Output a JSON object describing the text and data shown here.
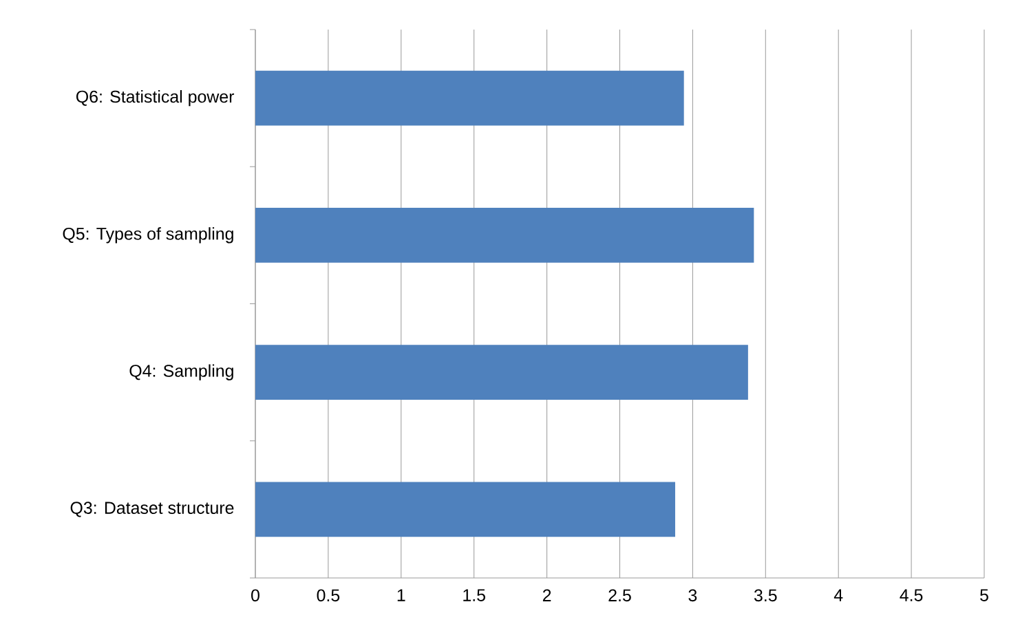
{
  "chart_data": {
    "type": "bar",
    "orientation": "horizontal",
    "categories": [
      "Q6: Statistical power",
      "Q5: Types of sampling",
      "Q4: Sampling",
      "Q3: Dataset structure"
    ],
    "values": [
      2.94,
      3.42,
      3.38,
      2.88
    ],
    "color": "#4f81bd",
    "xlim": [
      0,
      5
    ],
    "xticks": [
      0,
      0.5,
      1,
      1.5,
      2,
      2.5,
      3,
      3.5,
      4,
      4.5,
      5
    ],
    "grid": "x"
  }
}
